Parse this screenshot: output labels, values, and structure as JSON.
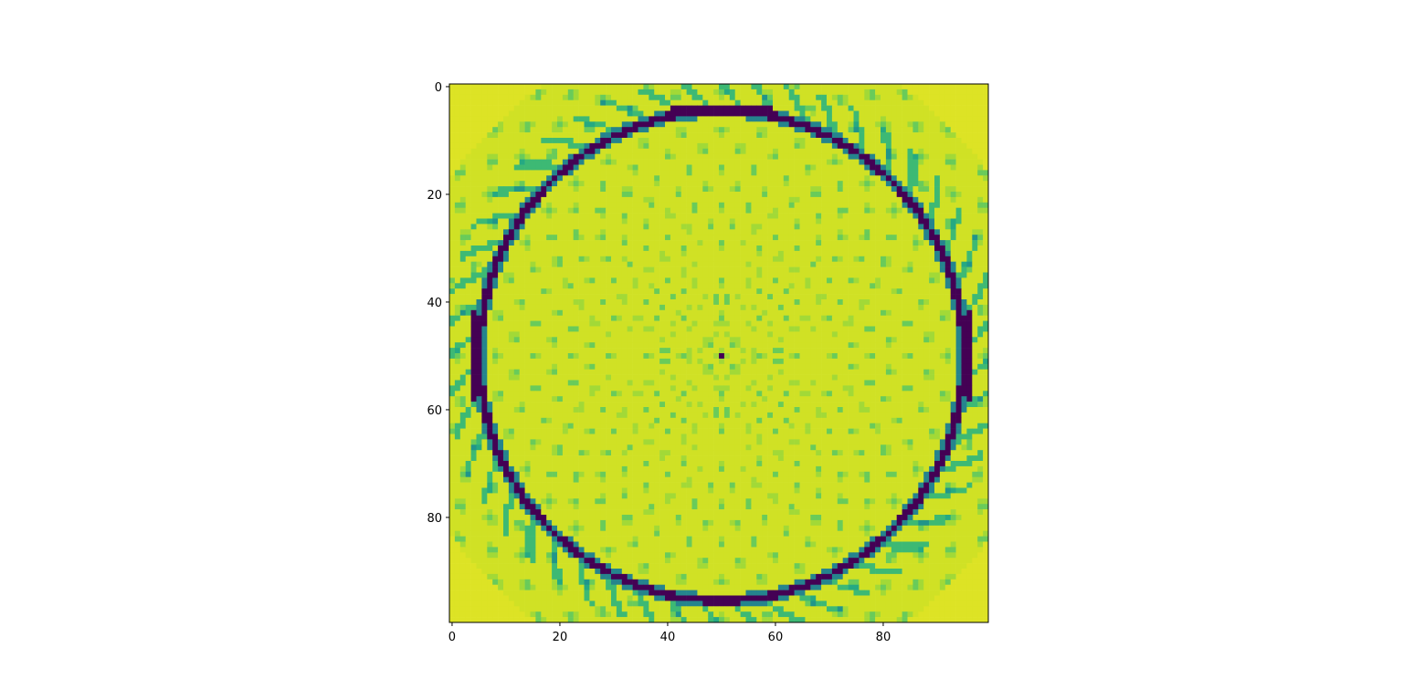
{
  "chart_data": {
    "type": "heatmap",
    "title": "",
    "xlabel": "",
    "ylabel": "",
    "grid_size": [
      100,
      100
    ],
    "xlim": [
      -0.5,
      99.5
    ],
    "ylim": [
      99.5,
      -0.5
    ],
    "x_ticks": [
      0,
      20,
      40,
      60,
      80
    ],
    "y_ticks": [
      0,
      20,
      40,
      60,
      80
    ],
    "x_tick_labels": [
      "0",
      "20",
      "40",
      "60",
      "80"
    ],
    "y_tick_labels": [
      "0",
      "20",
      "40",
      "60",
      "80"
    ],
    "colormap": "viridis",
    "grid": false,
    "features": {
      "ring": {
        "center": [
          50,
          50
        ],
        "radius_x": 45,
        "radius_y": 45.5,
        "thickness": 1.3,
        "flat_top_row": 4,
        "flat_bottom_row": 95,
        "flat_left_col": 4,
        "flat_right_col": 96,
        "value": 0.0
      },
      "center_dot": {
        "row": 50,
        "col": 50,
        "value": 0.0
      },
      "background_value": 0.93
    },
    "colors": {
      "background_yellow": "#d4e013",
      "ring_purple": "#440a68",
      "streak_green": "#3fbc73"
    }
  }
}
